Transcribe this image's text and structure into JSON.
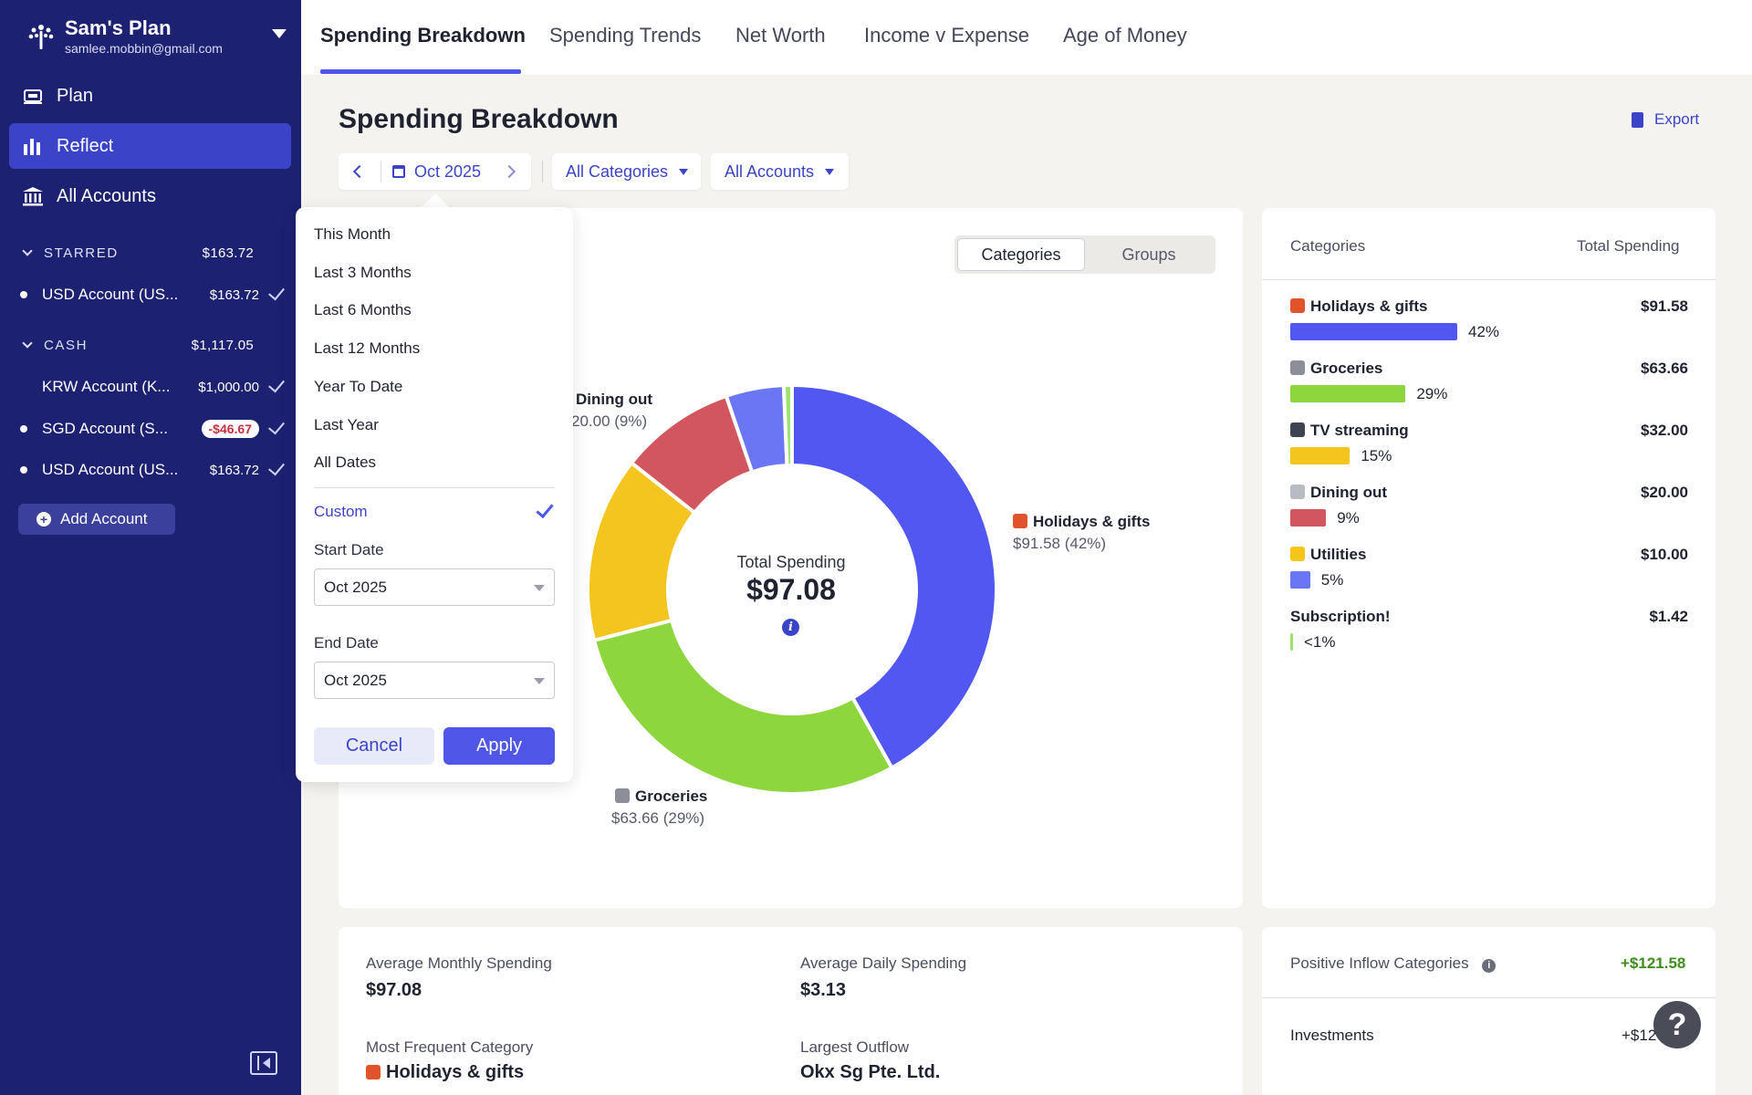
{
  "sidebar": {
    "plan_name": "Sam's Plan",
    "email": "samlee.mobbin@gmail.com",
    "nav": [
      {
        "label": "Plan",
        "icon": "plan-icon"
      },
      {
        "label": "Reflect",
        "icon": "bar-chart-icon",
        "active": true
      },
      {
        "label": "All Accounts",
        "icon": "bank-icon"
      }
    ],
    "starred": {
      "label": "STARRED",
      "amount": "$163.72"
    },
    "starred_accounts": [
      {
        "name": "USD Account (US...",
        "amount": "$163.72"
      }
    ],
    "cash": {
      "label": "CASH",
      "amount": "$1,117.05"
    },
    "cash_accounts": [
      {
        "name": "KRW Account (K...",
        "amount": "$1,000.00"
      },
      {
        "name": "SGD Account (S...",
        "amount": "-$46.67"
      },
      {
        "name": "USD Account (US...",
        "amount": "$163.72"
      }
    ],
    "add_account": "Add Account"
  },
  "tabs": [
    "Spending Breakdown",
    "Spending Trends",
    "Net Worth",
    "Income v Expense",
    "Age of Money"
  ],
  "page_title": "Spending Breakdown",
  "export_label": "Export",
  "filters": {
    "date": "Oct 2025",
    "categories": "All Categories",
    "accounts": "All Accounts"
  },
  "toggle": {
    "selected": "Categories",
    "other": "Groups"
  },
  "popover": {
    "presets": [
      "This Month",
      "Last 3 Months",
      "Last 6 Months",
      "Last 12 Months",
      "Year To Date",
      "Last Year",
      "All Dates"
    ],
    "custom": "Custom",
    "start_label": "Start Date",
    "start_value": "Oct 2025",
    "end_label": "End Date",
    "end_value": "Oct 2025",
    "cancel": "Cancel",
    "apply": "Apply"
  },
  "donut": {
    "center_title": "Total Spending",
    "center_value": "$97.08",
    "labels": {
      "holidays": {
        "name": "Holidays & gifts",
        "value": "$91.58 (42%)"
      },
      "groceries": {
        "name": "Groceries",
        "value": "$63.66 (29%)"
      },
      "dining": {
        "name": "Dining out",
        "value": "20.00 (9%)"
      }
    }
  },
  "chart_data": {
    "type": "pie",
    "categories": [
      "Holidays & gifts",
      "Groceries",
      "TV streaming",
      "Dining out",
      "Utilities",
      "Subscription!"
    ],
    "values": [
      91.58,
      63.66,
      32.0,
      20.0,
      10.0,
      1.42
    ],
    "colors": [
      "#5157f0",
      "#8ed63e",
      "#f4c51f",
      "#d1565f",
      "#6b76f5",
      "#9be36c"
    ]
  },
  "categories_panel": {
    "header_left": "Categories",
    "header_right": "Total Spending",
    "rows": [
      {
        "name": "Holidays & gifts",
        "amount": "$91.58",
        "pct": "42%",
        "pct_value": 42,
        "color": "#5157f0",
        "emoji_color": "#e0532b"
      },
      {
        "name": "Groceries",
        "amount": "$63.66",
        "pct": "29%",
        "pct_value": 29,
        "color": "#8ed63e",
        "emoji_color": "#8c8f99"
      },
      {
        "name": "TV streaming",
        "amount": "$32.00",
        "pct": "15%",
        "pct_value": 15,
        "color": "#f4c51f",
        "emoji_color": "#3f4250"
      },
      {
        "name": "Dining out",
        "amount": "$20.00",
        "pct": "9%",
        "pct_value": 9,
        "color": "#d1565f",
        "emoji_color": "#b9bbc3"
      },
      {
        "name": "Utilities",
        "amount": "$10.00",
        "pct": "5%",
        "pct_value": 5,
        "color": "#6b76f5",
        "emoji_color": "#f5c518"
      },
      {
        "name": "Subscription!",
        "amount": "$1.42",
        "pct": "<1%",
        "pct_value": 0.5,
        "color": "#9be36c",
        "emoji_color": ""
      }
    ]
  },
  "stats": {
    "avg_monthly_label": "Average Monthly Spending",
    "avg_monthly_value": "$97.08",
    "avg_daily_label": "Average Daily Spending",
    "avg_daily_value": "$3.13",
    "most_freq_label": "Most Frequent Category",
    "most_freq_value": "Holidays & gifts",
    "largest_label": "Largest Outflow",
    "largest_value": "Okx Sg Pte. Ltd."
  },
  "inflow": {
    "label": "Positive Inflow Categories",
    "value": "+$121.58",
    "row_name": "Investments",
    "row_value": "+$12"
  },
  "help_label": "?"
}
